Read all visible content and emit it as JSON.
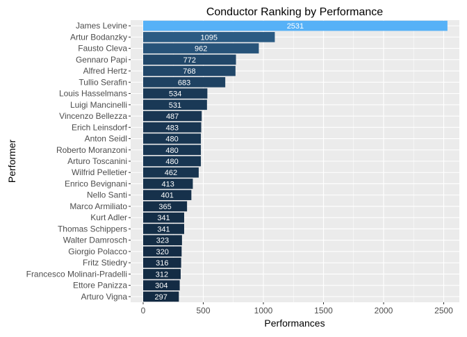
{
  "chart_data": {
    "type": "bar",
    "orientation": "horizontal",
    "title": "Conductor Ranking by Performance",
    "xlabel": "Performances",
    "ylabel": "Performer",
    "xlim": [
      0,
      2650
    ],
    "xticks": [
      0,
      500,
      1000,
      1500,
      2000,
      2500
    ],
    "grid": true,
    "legend": "none",
    "colors": {
      "panel": "#EBEBEB",
      "grid": "#FFFFFF",
      "low": "#132B43",
      "high": "#56B1F7"
    },
    "categories": [
      "James Levine",
      "Artur Bodanzky",
      "Fausto Cleva",
      "Gennaro Papi",
      "Alfred Hertz",
      "Tullio Serafin",
      "Louis Hasselmans",
      "Luigi Mancinelli",
      "Vincenzo Bellezza",
      "Erich Leinsdorf",
      "Anton Seidl",
      "Roberto Moranzoni",
      "Arturo Toscanini",
      "Wilfrid Pelletier",
      "Enrico Bevignani",
      "Nello Santi",
      "Marco Armiliato",
      "Kurt Adler",
      "Thomas Schippers",
      "Walter Damrosch",
      "Giorgio Polacco",
      "Fritz Stiedry",
      "Francesco Molinari-Pradelli",
      "Ettore Panizza",
      "Arturo Vigna"
    ],
    "values": [
      2531,
      1095,
      962,
      772,
      768,
      683,
      534,
      531,
      487,
      483,
      480,
      480,
      480,
      462,
      413,
      401,
      365,
      341,
      341,
      323,
      320,
      316,
      312,
      304,
      297
    ]
  }
}
